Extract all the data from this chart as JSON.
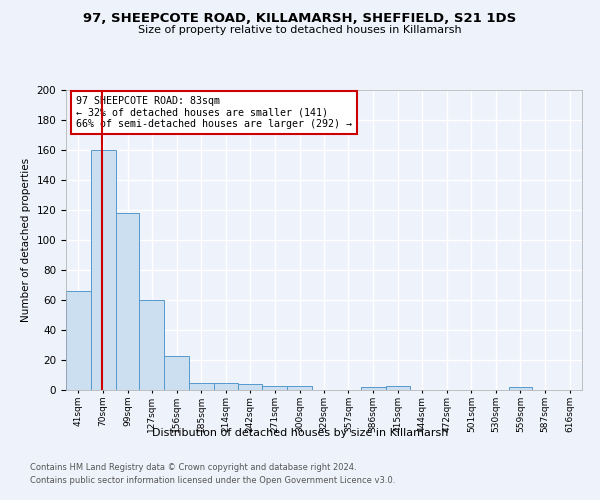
{
  "title1": "97, SHEEPCOTE ROAD, KILLAMARSH, SHEFFIELD, S21 1DS",
  "title2": "Size of property relative to detached houses in Killamarsh",
  "xlabel": "Distribution of detached houses by size in Killamarsh",
  "ylabel": "Number of detached properties",
  "footnote1": "Contains HM Land Registry data © Crown copyright and database right 2024.",
  "footnote2": "Contains public sector information licensed under the Open Government Licence v3.0.",
  "annotation_line1": "97 SHEEPCOTE ROAD: 83sqm",
  "annotation_line2": "← 32% of detached houses are smaller (141)",
  "annotation_line3": "66% of semi-detached houses are larger (292) →",
  "bar_edges": [
    41,
    70,
    99,
    127,
    156,
    185,
    214,
    242,
    271,
    300,
    329,
    357,
    386,
    415,
    444,
    472,
    501,
    530,
    559,
    587,
    616
  ],
  "bar_heights": [
    66,
    160,
    118,
    60,
    23,
    5,
    5,
    4,
    3,
    3,
    0,
    0,
    2,
    3,
    0,
    0,
    0,
    0,
    2,
    0,
    0
  ],
  "property_size": 83,
  "bar_color": "#ccdff0",
  "bar_edge_color": "#5599cc",
  "red_line_color": "#cc0000",
  "annotation_box_color": "#cc0000",
  "background_color": "#eef2fa",
  "grid_color": "#ffffff",
  "ylim": [
    0,
    200
  ],
  "yticks": [
    0,
    20,
    40,
    60,
    80,
    100,
    120,
    140,
    160,
    180,
    200
  ]
}
